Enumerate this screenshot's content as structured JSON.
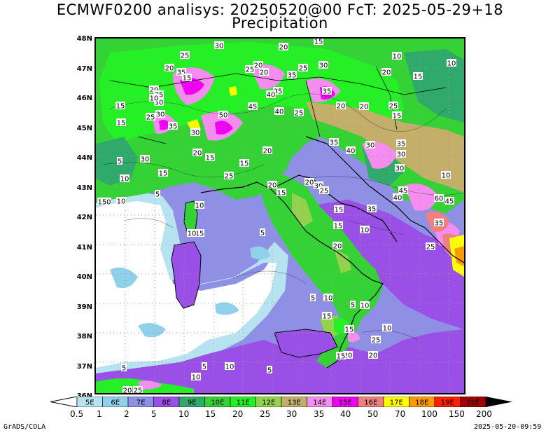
{
  "title_line1": "ECMWF0200 analisys: 20250520@00 FcT: 2025-05-29+18",
  "title_line2": "Precipitation",
  "lat_labels": [
    "48N",
    "47N",
    "46N",
    "45N",
    "44N",
    "43N",
    "42N",
    "41N",
    "40N",
    "39N",
    "38N",
    "37N",
    "36N"
  ],
  "lon_labels_colorbar": [
    "5E",
    "6E",
    "7E",
    "8E",
    "9E",
    "10E",
    "11E",
    "12E",
    "13E",
    "14E",
    "15E",
    "16E",
    "17E",
    "18E",
    "19E",
    "20E"
  ],
  "colorbar_colors": [
    "#b7e2f0",
    "#8fd0ea",
    "#8f8fe6",
    "#9a4fe6",
    "#2faa6a",
    "#35d235",
    "#25f025",
    "#93d24d",
    "#c3ae6a",
    "#f58cf0",
    "#f000f0",
    "#f08080",
    "#ffff00",
    "#ff9a00",
    "#ff2000",
    "#a00000"
  ],
  "colorbar_values": [
    "0.5",
    "1",
    "2",
    "5",
    "10",
    "15",
    "20",
    "25",
    "30",
    "35",
    "40",
    "50",
    "70",
    "100",
    "150",
    "200"
  ],
  "contour_labels": [
    {
      "t": "30"
    },
    {
      "t": "20"
    },
    {
      "t": "15"
    },
    {
      "t": "10"
    },
    {
      "t": "10"
    },
    {
      "t": "25"
    },
    {
      "t": "20"
    },
    {
      "t": "35"
    },
    {
      "t": "15"
    },
    {
      "t": "20"
    },
    {
      "t": "25"
    },
    {
      "t": "20"
    },
    {
      "t": "30"
    },
    {
      "t": "35"
    },
    {
      "t": "25"
    },
    {
      "t": "20"
    },
    {
      "t": "15"
    },
    {
      "t": "20"
    },
    {
      "t": "25"
    },
    {
      "t": "15"
    },
    {
      "t": "30"
    },
    {
      "t": "35"
    },
    {
      "t": "40"
    },
    {
      "t": "45"
    },
    {
      "t": "40"
    },
    {
      "t": "25"
    },
    {
      "t": "35"
    },
    {
      "t": "20"
    },
    {
      "t": "20"
    },
    {
      "t": "25"
    },
    {
      "t": "15"
    },
    {
      "t": "15"
    },
    {
      "t": "10"
    },
    {
      "t": "25"
    },
    {
      "t": "30"
    },
    {
      "t": "35"
    },
    {
      "t": "50"
    },
    {
      "t": "30"
    },
    {
      "t": "20"
    },
    {
      "t": "15"
    },
    {
      "t": "20"
    },
    {
      "t": "35"
    },
    {
      "t": "40"
    },
    {
      "t": "30"
    },
    {
      "t": "35"
    },
    {
      "t": "30"
    },
    {
      "t": "5"
    },
    {
      "t": "30"
    },
    {
      "t": "15"
    },
    {
      "t": "10"
    },
    {
      "t": "25"
    },
    {
      "t": "15"
    },
    {
      "t": "20"
    },
    {
      "t": "20"
    },
    {
      "t": "15"
    },
    {
      "t": "30"
    },
    {
      "t": "25"
    },
    {
      "t": "30"
    },
    {
      "t": "45"
    },
    {
      "t": "40"
    },
    {
      "t": "10"
    },
    {
      "t": "150"
    },
    {
      "t": "10"
    },
    {
      "t": "5"
    },
    {
      "t": "10"
    },
    {
      "t": "15"
    },
    {
      "t": "10"
    },
    {
      "t": "5"
    },
    {
      "t": "15"
    },
    {
      "t": "10"
    },
    {
      "t": "35"
    },
    {
      "t": "15"
    },
    {
      "t": "20"
    },
    {
      "t": "5"
    },
    {
      "t": "10"
    },
    {
      "t": "15"
    },
    {
      "t": "10"
    },
    {
      "t": "5"
    },
    {
      "t": "15"
    },
    {
      "t": "20"
    },
    {
      "t": "20"
    },
    {
      "t": "25"
    },
    {
      "t": "10"
    },
    {
      "t": "15"
    },
    {
      "t": "5"
    },
    {
      "t": "10"
    },
    {
      "t": "5"
    },
    {
      "t": "5"
    },
    {
      "t": "10"
    },
    {
      "t": "20"
    },
    {
      "t": "25"
    },
    {
      "t": "60"
    },
    {
      "t": "45"
    },
    {
      "t": "35"
    },
    {
      "t": "25"
    }
  ],
  "footer_left": "GrADS/COLA",
  "footer_right": "2025-05-20-09:59"
}
